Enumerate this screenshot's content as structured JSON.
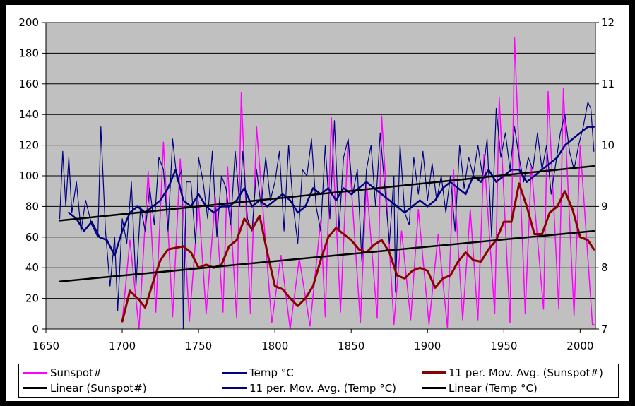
{
  "chart_data": {
    "type": "line",
    "title": "",
    "xlabel": "",
    "ylabel": "",
    "xlim": [
      1650,
      2010
    ],
    "ylim": [
      0,
      200
    ],
    "y2lim": [
      7,
      12
    ],
    "x_ticks": [
      "1650",
      "1700",
      "1750",
      "1800",
      "1850",
      "1900",
      "1950",
      "2000"
    ],
    "y_ticks": [
      "0",
      "20",
      "40",
      "60",
      "80",
      "100",
      "120",
      "140",
      "160",
      "180",
      "200"
    ],
    "y2_ticks": [
      "7",
      "8",
      "9",
      "10",
      "11",
      "12"
    ],
    "grid": true,
    "legend_position": "bottom",
    "series": [
      {
        "name": "Sunspot#",
        "axis": "left",
        "color": "#ff00ff",
        "width": 1.5,
        "x": [
          1700,
          1705,
          1711,
          1717,
          1722,
          1727,
          1733,
          1738,
          1744,
          1750,
          1755,
          1761,
          1766,
          1769,
          1775,
          1778,
          1784,
          1788,
          1798,
          1804,
          1810,
          1816,
          1823,
          1830,
          1833,
          1837,
          1843,
          1848,
          1856,
          1860,
          1867,
          1870,
          1878,
          1883,
          1889,
          1894,
          1901,
          1907,
          1913,
          1917,
          1923,
          1928,
          1933,
          1937,
          1944,
          1947,
          1954,
          1957,
          1964,
          1968,
          1976,
          1979,
          1986,
          1989,
          1996,
          2000,
          2008,
          2009
        ],
        "y": [
          5,
          58,
          0,
          103,
          11,
          122,
          8,
          111,
          5,
          83,
          10,
          86,
          11,
          106,
          7,
          154,
          10,
          132,
          4,
          48,
          0,
          46,
          2,
          71,
          8,
          138,
          11,
          124,
          4,
          96,
          7,
          139,
          3,
          64,
          6,
          78,
          3,
          62,
          1,
          104,
          6,
          78,
          6,
          114,
          10,
          151,
          4,
          190,
          10,
          106,
          13,
          155,
          13,
          157,
          9,
          120,
          3,
          3
        ]
      },
      {
        "name": "Temp °C",
        "axis": "right",
        "color": "#000080",
        "width": 1.2,
        "x": [
          1659,
          1661,
          1663,
          1665,
          1667,
          1670,
          1673,
          1676,
          1680,
          1684,
          1686,
          1689,
          1692,
          1695,
          1697,
          1700,
          1703,
          1706,
          1709,
          1712,
          1715,
          1718,
          1721,
          1724,
          1727,
          1730,
          1733,
          1736,
          1739,
          1740,
          1742,
          1745,
          1748,
          1750,
          1753,
          1756,
          1759,
          1762,
          1765,
          1768,
          1771,
          1774,
          1777,
          1779,
          1782,
          1785,
          1788,
          1791,
          1794,
          1797,
          1800,
          1803,
          1806,
          1809,
          1812,
          1815,
          1818,
          1821,
          1824,
          1827,
          1830,
          1833,
          1836,
          1839,
          1842,
          1845,
          1848,
          1851,
          1854,
          1857,
          1860,
          1863,
          1866,
          1869,
          1872,
          1875,
          1878,
          1879,
          1882,
          1885,
          1888,
          1891,
          1894,
          1897,
          1900,
          1903,
          1906,
          1909,
          1912,
          1915,
          1918,
          1921,
          1924,
          1927,
          1930,
          1933,
          1936,
          1939,
          1942,
          1945,
          1948,
          1951,
          1954,
          1957,
          1960,
          1963,
          1966,
          1969,
          1972,
          1975,
          1978,
          1981,
          1984,
          1987,
          1990,
          1993,
          1996,
          1999,
          2002,
          2005,
          2007,
          2009
        ],
        "y": [
          8.8,
          9.9,
          9.0,
          9.8,
          8.9,
          9.4,
          8.6,
          9.1,
          8.7,
          8.5,
          10.3,
          8.6,
          7.7,
          8.5,
          7.3,
          8.8,
          8.4,
          9.4,
          7.7,
          9.0,
          8.6,
          9.3,
          8.7,
          9.8,
          9.6,
          8.6,
          10.1,
          9.4,
          9.6,
          7.0,
          9.4,
          9.4,
          8.4,
          9.8,
          9.4,
          8.8,
          9.9,
          8.5,
          9.5,
          9.3,
          8.7,
          9.9,
          9.0,
          9.9,
          8.8,
          8.6,
          9.6,
          9.0,
          9.8,
          9.1,
          9.4,
          9.9,
          8.6,
          10.0,
          9.0,
          8.4,
          9.6,
          9.5,
          10.1,
          9.0,
          8.6,
          10.0,
          8.8,
          10.4,
          8.6,
          9.8,
          10.1,
          9.2,
          9.6,
          8.1,
          9.6,
          10.0,
          9.0,
          10.2,
          9.3,
          8.4,
          9.5,
          7.6,
          10.0,
          8.9,
          8.7,
          9.8,
          9.2,
          9.9,
          9.1,
          9.7,
          9.1,
          9.5,
          8.9,
          9.5,
          8.6,
          10.0,
          9.3,
          9.8,
          9.5,
          10.0,
          9.5,
          10.1,
          8.5,
          10.6,
          9.8,
          10.2,
          9.6,
          10.3,
          9.8,
          9.4,
          9.8,
          9.6,
          10.2,
          9.6,
          10.0,
          9.2,
          9.7,
          10.2,
          10.5,
          9.9,
          9.6,
          10.0,
          10.3,
          10.7,
          10.6,
          9.9
        ]
      },
      {
        "name": "11 per. Mov. Avg. (Sunspot#)",
        "axis": "left",
        "color": "#8b0000",
        "width": 3,
        "x": [
          1700,
          1705,
          1710,
          1715,
          1720,
          1725,
          1730,
          1735,
          1740,
          1745,
          1750,
          1755,
          1760,
          1765,
          1770,
          1775,
          1780,
          1785,
          1790,
          1795,
          1800,
          1805,
          1810,
          1815,
          1820,
          1825,
          1830,
          1835,
          1840,
          1845,
          1850,
          1855,
          1860,
          1865,
          1870,
          1875,
          1880,
          1885,
          1890,
          1895,
          1900,
          1905,
          1910,
          1915,
          1920,
          1925,
          1930,
          1935,
          1940,
          1945,
          1950,
          1955,
          1960,
          1965,
          1970,
          1975,
          1980,
          1985,
          1990,
          1995,
          2000,
          2005,
          2009
        ],
        "y": [
          5,
          25,
          20,
          14,
          30,
          45,
          52,
          53,
          54,
          50,
          40,
          42,
          40,
          42,
          54,
          58,
          72,
          65,
          74,
          50,
          28,
          26,
          20,
          15,
          20,
          28,
          45,
          60,
          66,
          62,
          58,
          52,
          50,
          55,
          58,
          50,
          35,
          33,
          38,
          40,
          38,
          27,
          33,
          35,
          44,
          50,
          45,
          44,
          52,
          58,
          70,
          70,
          95,
          80,
          62,
          62,
          76,
          80,
          90,
          78,
          60,
          58,
          52
        ]
      },
      {
        "name": "Linear (Sunspot#)",
        "axis": "left",
        "color": "#000000",
        "width": 2.5,
        "x": [
          1659,
          2009
        ],
        "y": [
          31,
          64
        ]
      },
      {
        "name": "11 per. Mov. Avg. (Temp °C)",
        "axis": "right",
        "color": "#000080",
        "width": 2.5,
        "x": [
          1665,
          1670,
          1675,
          1680,
          1685,
          1690,
          1695,
          1700,
          1705,
          1710,
          1715,
          1720,
          1725,
          1730,
          1735,
          1740,
          1745,
          1750,
          1755,
          1760,
          1765,
          1770,
          1775,
          1780,
          1785,
          1790,
          1795,
          1800,
          1805,
          1810,
          1815,
          1820,
          1825,
          1830,
          1835,
          1840,
          1845,
          1850,
          1855,
          1860,
          1865,
          1870,
          1875,
          1880,
          1885,
          1890,
          1895,
          1900,
          1905,
          1910,
          1915,
          1920,
          1925,
          1930,
          1935,
          1940,
          1945,
          1950,
          1955,
          1960,
          1965,
          1970,
          1975,
          1980,
          1985,
          1990,
          1995,
          2000,
          2005,
          2009
        ],
        "y": [
          8.9,
          8.8,
          8.6,
          8.75,
          8.5,
          8.45,
          8.2,
          8.6,
          8.9,
          9.0,
          8.9,
          9.0,
          9.1,
          9.3,
          9.6,
          9.1,
          9.0,
          9.2,
          9.0,
          8.9,
          9.0,
          9.0,
          9.1,
          9.3,
          9.0,
          9.1,
          9.0,
          9.1,
          9.2,
          9.1,
          8.9,
          9.0,
          9.3,
          9.2,
          9.3,
          9.1,
          9.3,
          9.2,
          9.3,
          9.4,
          9.3,
          9.2,
          9.1,
          9.0,
          8.9,
          9.0,
          9.1,
          9.0,
          9.1,
          9.3,
          9.4,
          9.3,
          9.2,
          9.5,
          9.4,
          9.6,
          9.4,
          9.5,
          9.6,
          9.6,
          9.4,
          9.5,
          9.6,
          9.7,
          9.8,
          10.0,
          10.1,
          10.2,
          10.3,
          10.3
        ]
      },
      {
        "name": "Linear (Temp °C)",
        "axis": "right",
        "color": "#000000",
        "width": 2.5,
        "x": [
          1659,
          2009
        ],
        "y": [
          8.77,
          9.66
        ]
      }
    ]
  }
}
